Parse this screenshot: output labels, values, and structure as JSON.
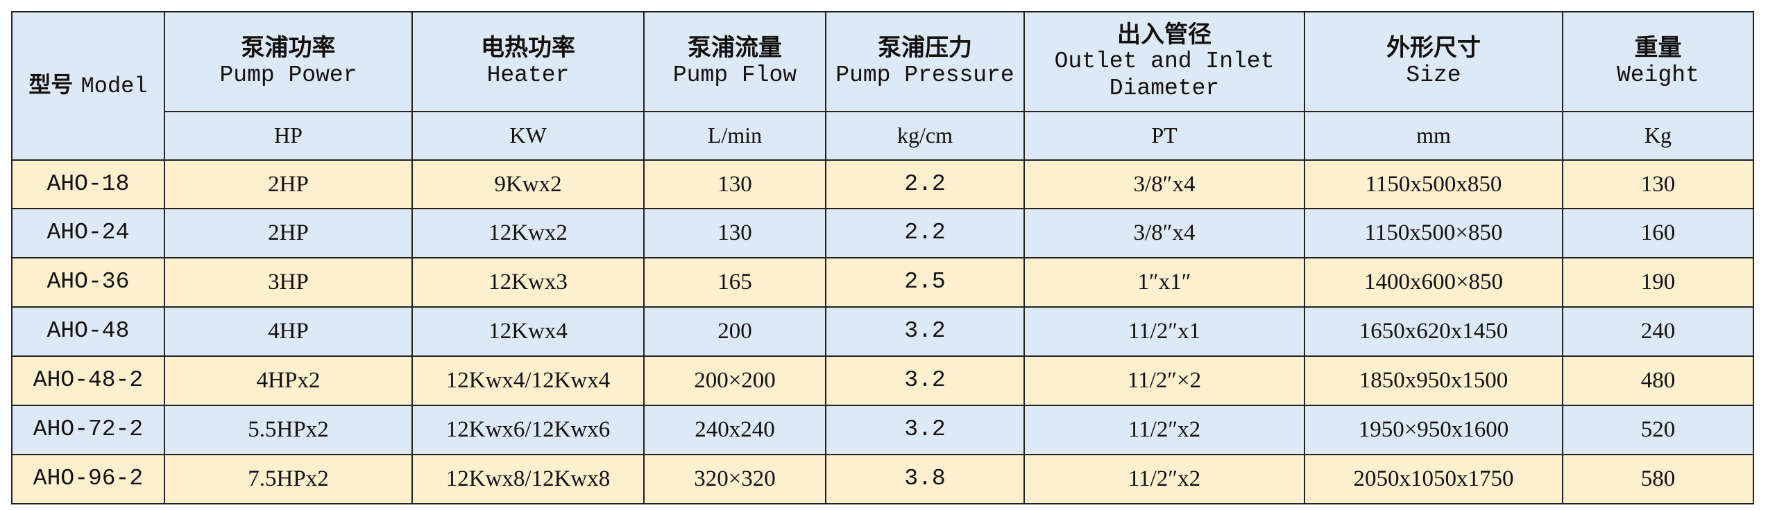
{
  "header": {
    "model": {
      "zh": "型号",
      "en": "Model"
    },
    "columns": [
      {
        "zh": "泵浦功率",
        "en": "Pump Power",
        "unit": "HP"
      },
      {
        "zh": "电热功率",
        "en": "Heater",
        "unit": "KW"
      },
      {
        "zh": "泵浦流量",
        "en": "Pump Flow",
        "unit": "L/min"
      },
      {
        "zh": "泵浦压力",
        "en": "Pump Pressure",
        "unit": "kg/cm"
      },
      {
        "zh": "出入管径",
        "en": "Outlet and Inlet",
        "en2": "Diameter",
        "unit": "PT"
      },
      {
        "zh": "外形尺寸",
        "en": "Size",
        "unit": "mm"
      },
      {
        "zh": "重量",
        "en": "Weight",
        "unit": "Kg"
      }
    ]
  },
  "rows": [
    {
      "model": "AHO-18",
      "power": "2HP",
      "heater": "9Kwx2",
      "flow": "130",
      "pressure": "2.2",
      "pipe": "3/8″x4",
      "size": "1150x500x850",
      "weight": "130"
    },
    {
      "model": "AHO-24",
      "power": "2HP",
      "heater": "12Kwx2",
      "flow": "130",
      "pressure": "2.2",
      "pipe": "3/8″x4",
      "size": "1150x500×850",
      "weight": "160"
    },
    {
      "model": "AHO-36",
      "power": "3HP",
      "heater": "12Kwx3",
      "flow": "165",
      "pressure": "2.5",
      "pipe": "1″x1″",
      "size": "1400x600×850",
      "weight": "190"
    },
    {
      "model": "AHO-48",
      "power": "4HP",
      "heater": "12Kwx4",
      "flow": "200",
      "pressure": "3.2",
      "pipe": "11/2″x1",
      "size": "1650x620x1450",
      "weight": "240"
    },
    {
      "model": "AHO-48-2",
      "power": "4HPx2",
      "heater": "12Kwx4/12Kwx4",
      "flow": "200×200",
      "pressure": "3.2",
      "pipe": "11/2″×2",
      "size": "1850x950x1500",
      "weight": "480"
    },
    {
      "model": "AHO-72-2",
      "power": "5.5HPx2",
      "heater": "12Kwx6/12Kwx6",
      "flow": "240x240",
      "pressure": "3.2",
      "pipe": "11/2″x2",
      "size": "1950×950x1600",
      "weight": "520"
    },
    {
      "model": "AHO-96-2",
      "power": "7.5HPx2",
      "heater": "12Kwx8/12Kwx8",
      "flow": "320×320",
      "pressure": "3.8",
      "pipe": "11/2″x2",
      "size": "2050x1050x1750",
      "weight": "580"
    }
  ],
  "colors": {
    "header_bg": "#dde9f4",
    "row_yellow": "#fdf0cf",
    "row_blue": "#dde9f4",
    "border": "#222222"
  }
}
